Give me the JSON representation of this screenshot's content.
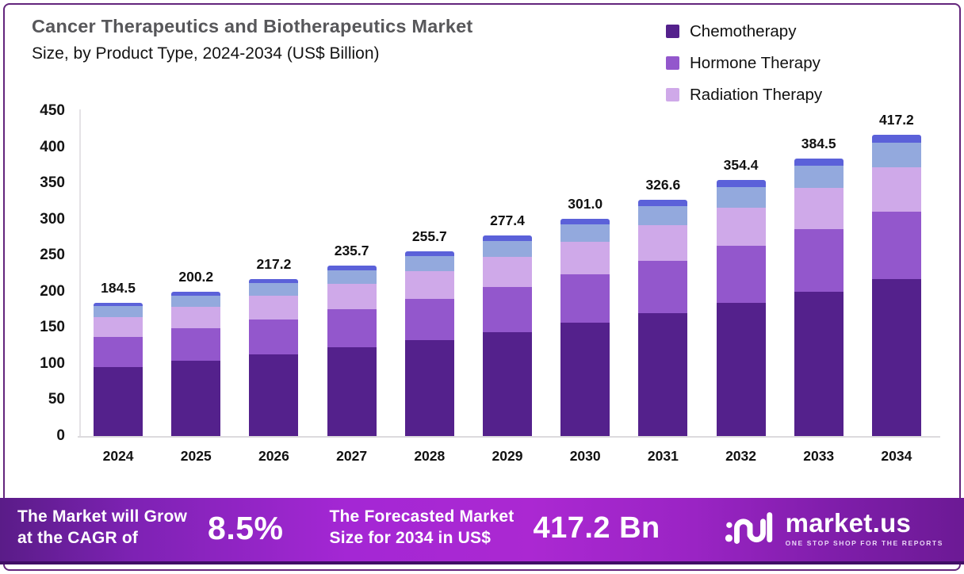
{
  "title": {
    "line1": "Cancer Therapeutics and Biotherapeutics Market",
    "line2": "Size, by Product Type, 2024-2034 (US$ Billion)"
  },
  "legend": {
    "items": [
      {
        "label": "Chemotherapy",
        "color": "#54218c"
      },
      {
        "label": "Hormone Therapy",
        "color": "#9357cc"
      },
      {
        "label": "Radiation Therapy",
        "color": "#cfa9e9"
      }
    ]
  },
  "chart_data": {
    "type": "bar",
    "stacked": true,
    "title": "Cancer Therapeutics and Biotherapeutics Market Size, by Product Type, 2024-2034 (US$ Billion)",
    "categories": [
      "2024",
      "2025",
      "2026",
      "2027",
      "2028",
      "2029",
      "2030",
      "2031",
      "2032",
      "2033",
      "2034"
    ],
    "totals": [
      184.5,
      200.2,
      217.2,
      235.7,
      255.7,
      277.4,
      301.0,
      326.6,
      354.4,
      384.5,
      417.2
    ],
    "total_labels": [
      "184.5",
      "200.2",
      "217.2",
      "235.7",
      "255.7",
      "277.4",
      "301.0",
      "326.6",
      "354.4",
      "384.5",
      "417.2"
    ],
    "ylim": [
      0,
      450
    ],
    "yticks": [
      0,
      50,
      100,
      150,
      200,
      250,
      300,
      350,
      400,
      450
    ],
    "grid": false,
    "legend_position": "top-right",
    "series": [
      {
        "name": "Chemotherapy",
        "color": "#54218c",
        "values": [
          95.9,
          104.2,
          112.8,
          122.5,
          132.9,
          144.3,
          156.6,
          169.8,
          184.2,
          199.9,
          216.9
        ]
      },
      {
        "name": "Hormone Therapy",
        "color": "#9357cc",
        "values": [
          41.3,
          44.8,
          48.7,
          52.8,
          57.3,
          62.1,
          67.4,
          73.2,
          79.4,
          86.1,
          93.5
        ]
      },
      {
        "name": "Radiation Therapy",
        "color": "#cfa9e9",
        "values": [
          27.5,
          29.8,
          32.4,
          35.1,
          38.1,
          41.3,
          44.8,
          48.7,
          52.8,
          57.3,
          62.2
        ]
      },
      {
        "name": "Unlabeled segment (light blue)",
        "color": "#93a9dd",
        "values": [
          14.8,
          16.0,
          17.4,
          18.9,
          20.5,
          22.2,
          24.1,
          26.1,
          28.4,
          30.8,
          33.4
        ]
      },
      {
        "name": "Unlabeled segment (indigo)",
        "color": "#5b61d9",
        "values": [
          5.0,
          5.4,
          5.9,
          6.4,
          6.9,
          7.5,
          8.1,
          8.8,
          9.6,
          10.4,
          11.2
        ]
      }
    ]
  },
  "banner": {
    "cagr_label_line1": "The Market will Grow",
    "cagr_label_line2": "at the CAGR of",
    "cagr_value": "8.5%",
    "forecast_label_line1": "The Forecasted Market",
    "forecast_label_line2": "Size for 2034 in US$",
    "forecast_value": "417.2 Bn",
    "brand_name": "market.us",
    "brand_tagline": "ONE STOP SHOP FOR THE REPORTS"
  }
}
